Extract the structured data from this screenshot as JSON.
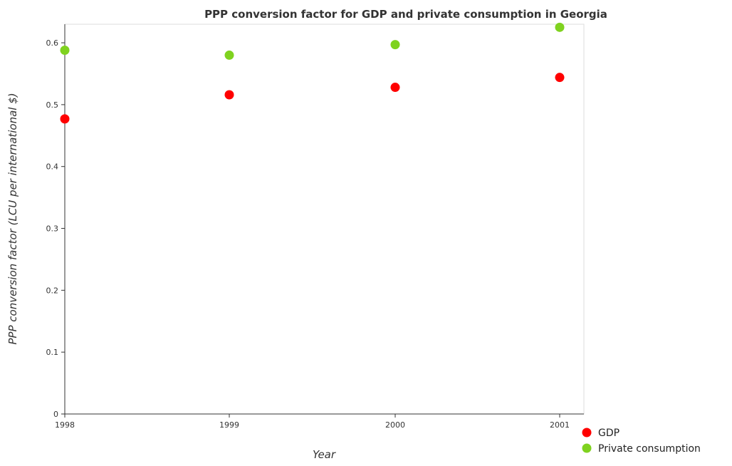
{
  "chart_data": {
    "type": "scatter",
    "title": "PPP conversion factor for GDP and private consumption in Georgia",
    "xlabel": "Year",
    "ylabel": "PPP conversion factor (LCU per international $)",
    "categories": [
      "1998",
      "1999",
      "2000",
      "2001"
    ],
    "ylim": [
      0,
      0.63
    ],
    "yticks": [
      0,
      0.1,
      0.2,
      0.3,
      0.4,
      0.5,
      0.6
    ],
    "ytick_labels": [
      "0",
      "0.1",
      "0.2",
      "0.3",
      "0.4",
      "0.5",
      "0.6"
    ],
    "grid": false,
    "legend_position": "bottom-right",
    "series": [
      {
        "name": "GDP",
        "color": "#ff0000",
        "values": [
          0.477,
          0.516,
          0.528,
          0.544
        ]
      },
      {
        "name": " Private consumption",
        "color": "#7fd21f",
        "values": [
          0.588,
          0.58,
          0.597,
          0.625
        ]
      }
    ]
  }
}
